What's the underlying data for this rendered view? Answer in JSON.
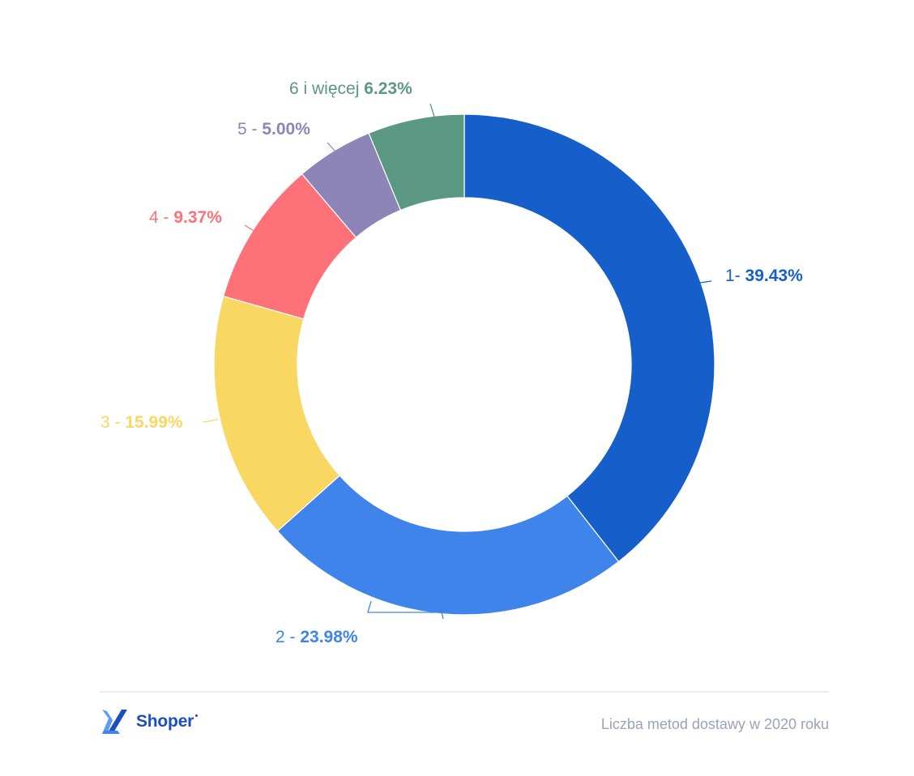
{
  "chart_data": {
    "type": "pie",
    "donut": true,
    "title": "Liczba metod dostawy w 2020 roku",
    "slices": [
      {
        "prefix": "1- ",
        "value_label": "39.43%",
        "value": 39.43,
        "color": "#165fcb"
      },
      {
        "prefix": "2 - ",
        "value_label": "23.98%",
        "value": 23.98,
        "color": "#3e84ea"
      },
      {
        "prefix": "3 - ",
        "value_label": "15.99%",
        "value": 15.99,
        "color": "#f8d763"
      },
      {
        "prefix": "4 - ",
        "value_label": "9.37%",
        "value": 9.37,
        "color": "#ff7178"
      },
      {
        "prefix": "5 - ",
        "value_label": "5.00%",
        "value": 5.0,
        "color": "#8d85b8"
      },
      {
        "prefix": "6 i więcej ",
        "value_label": "6.23%",
        "value": 6.23,
        "color": "#5a9884"
      }
    ]
  },
  "footer": {
    "brand": "Shoper",
    "caption": "Liczba metod dostawy w 2020 roku"
  },
  "colors": {
    "brand": "#1b4fbf",
    "divider": "#e8ebef",
    "caption": "#9aa3b8"
  }
}
